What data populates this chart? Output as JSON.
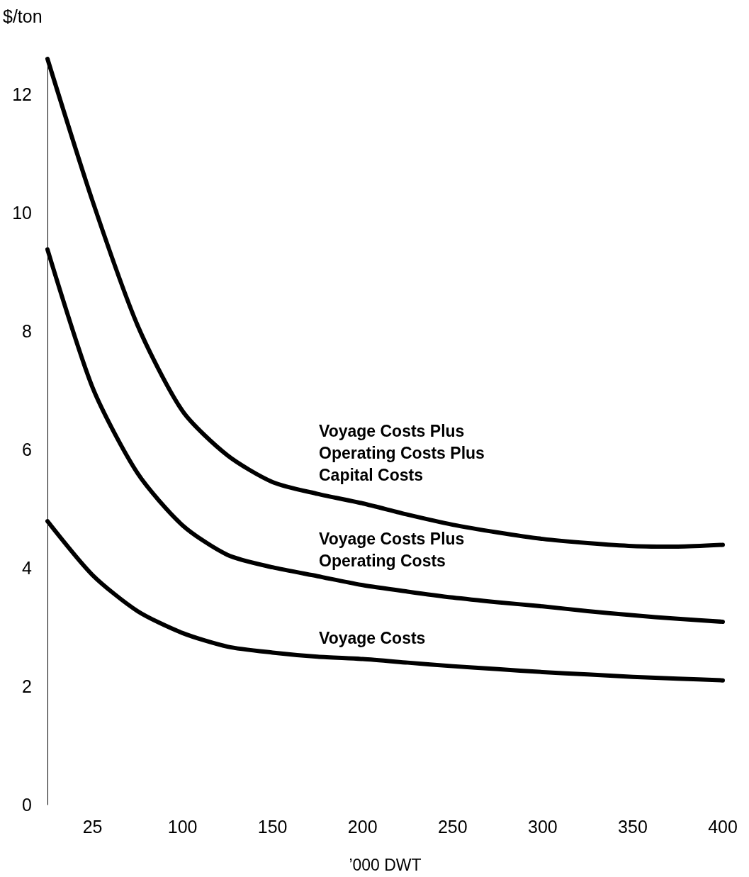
{
  "chart_data": {
    "type": "line",
    "ylabel": "$/ton",
    "xlabel": "’000 DWT",
    "categories": [
      null,
      "25",
      null,
      "100",
      null,
      "150",
      null,
      "200",
      null,
      "250",
      null,
      "300",
      null,
      "350",
      null,
      "400"
    ],
    "ylim": [
      0,
      12.6
    ],
    "yticks": [
      0,
      2,
      4,
      6,
      8,
      10,
      12
    ],
    "grid": false,
    "marker": "none",
    "line_style": "solid",
    "legend": false,
    "series": [
      {
        "name": "Voyage Costs Plus\nOperating Costs Plus\nCapital Costs",
        "color": "#000000",
        "values": [
          12.6,
          10.2,
          8.1,
          6.65,
          5.9,
          5.45,
          5.25,
          5.09,
          4.9,
          4.73,
          4.6,
          4.49,
          4.42,
          4.37,
          4.36,
          4.39
        ]
      },
      {
        "name": "Voyage Costs Plus\nOperating Costs",
        "color": "#000000",
        "values": [
          9.38,
          7.05,
          5.6,
          4.72,
          4.22,
          4.01,
          3.86,
          3.71,
          3.6,
          3.5,
          3.42,
          3.35,
          3.27,
          3.2,
          3.14,
          3.09
        ]
      },
      {
        "name": "Voyage Costs",
        "color": "#000000",
        "values": [
          4.79,
          3.88,
          3.27,
          2.9,
          2.67,
          2.57,
          2.5,
          2.46,
          2.4,
          2.34,
          2.29,
          2.24,
          2.2,
          2.16,
          2.13,
          2.1
        ]
      }
    ]
  }
}
